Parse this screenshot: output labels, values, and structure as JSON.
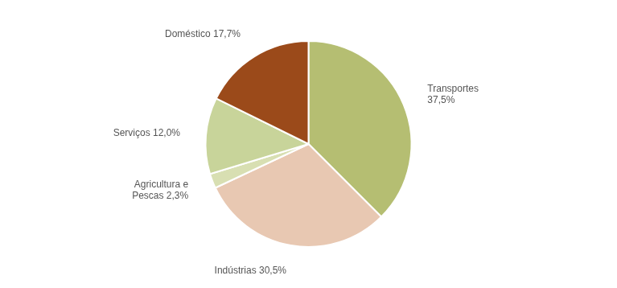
{
  "chart_data": {
    "type": "pie",
    "categories": [
      "Transportes\n37,5%",
      "Indústrias 30,5%",
      "Agricultura e\nPescas 2,3%",
      "Serviços 12,0%",
      "Doméstico 17,7%"
    ],
    "values": [
      37.5,
      30.5,
      2.3,
      12.0,
      17.7
    ],
    "colors": [
      "#b5be72",
      "#e8c8b2",
      "#d8dfb2",
      "#c8d49a",
      "#9b4a1a"
    ]
  }
}
